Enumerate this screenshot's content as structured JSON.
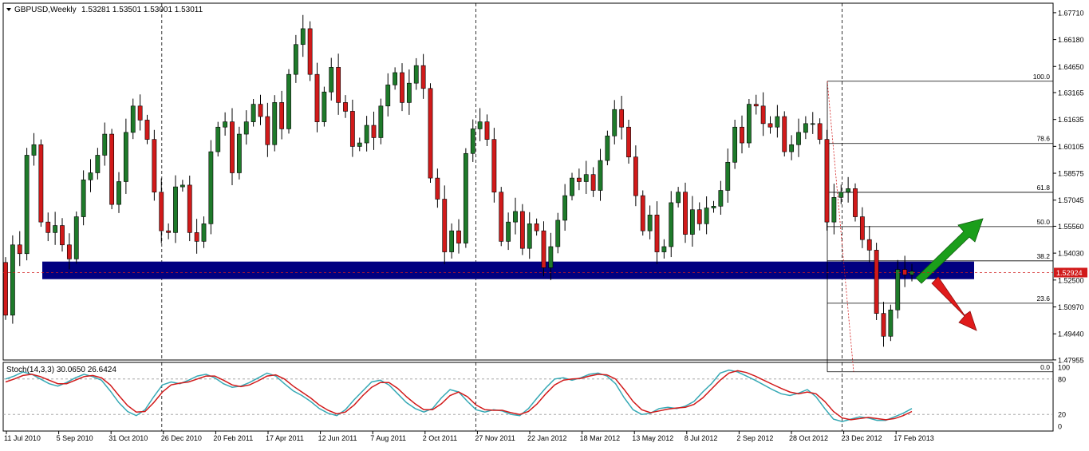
{
  "header": {
    "symbol": "GBPUSD,Weekly",
    "ohlc": "1.53281 1.53501 1.53001 1.53011"
  },
  "chart_data": {
    "type": "candlestick",
    "symbol": "GBPUSD",
    "timeframe": "Weekly",
    "ylim": [
      1.4795,
      1.6825
    ],
    "price_ticks": [
      "1.67710",
      "1.66180",
      "1.64650",
      "1.63165",
      "1.61635",
      "1.60105",
      "1.58575",
      "1.57045",
      "1.55560",
      "1.54030",
      "1.52500",
      "1.50970",
      "1.49440",
      "1.47955"
    ],
    "current_price": "1.52924",
    "x_labels": [
      "11 Jul 2010",
      "5 Sep 2010",
      "31 Oct 2010",
      "26 Dec 2010",
      "20 Feb 2011",
      "17 Apr 2011",
      "12 Jun 2011",
      "7 Aug 2011",
      "2 Oct 2011",
      "27 Nov 2011",
      "22 Jan 2012",
      "18 Mar 2012",
      "13 May 2012",
      "8 Jul 2012",
      "2 Sep 2012",
      "28 Oct 2012",
      "23 Dec 2012",
      "17 Feb 2013"
    ],
    "period_separators": [
      "26 Dec 2010",
      "27 Nov 2011",
      "23 Dec 2012"
    ],
    "candles_close": [
      1.505,
      1.545,
      1.54,
      1.596,
      1.602,
      1.558,
      1.552,
      1.556,
      1.545,
      1.537,
      1.561,
      1.582,
      1.586,
      1.596,
      1.608,
      1.568,
      1.581,
      1.609,
      1.624,
      1.616,
      1.605,
      1.575,
      1.553,
      1.552,
      1.578,
      1.579,
      1.552,
      1.547,
      1.557,
      1.598,
      1.612,
      1.615,
      1.586,
      1.608,
      1.615,
      1.625,
      1.618,
      1.602,
      1.626,
      1.611,
      1.642,
      1.659,
      1.668,
      1.642,
      1.615,
      1.632,
      1.646,
      1.626,
      1.621,
      1.601,
      1.603,
      1.613,
      1.606,
      1.624,
      1.636,
      1.643,
      1.626,
      1.637,
      1.647,
      1.634,
      1.583,
      1.571,
      1.541,
      1.553,
      1.546,
      1.597,
      1.611,
      1.615,
      1.605,
      1.575,
      1.547,
      1.558,
      1.564,
      1.543,
      1.557,
      1.553,
      1.532,
      1.544,
      1.559,
      1.573,
      1.583,
      1.581,
      1.585,
      1.576,
      1.593,
      1.607,
      1.622,
      1.612,
      1.595,
      1.573,
      1.553,
      1.562,
      1.541,
      1.544,
      1.569,
      1.575,
      1.551,
      1.565,
      1.557,
      1.566,
      1.567,
      1.576,
      1.592,
      1.612,
      1.603,
      1.625,
      1.624,
      1.614,
      1.612,
      1.618,
      1.598,
      1.602,
      1.609,
      1.614,
      1.614,
      1.605,
      1.558,
      1.572,
      1.575,
      1.577,
      1.561,
      1.548,
      1.542,
      1.506,
      1.493,
      1.508,
      1.531,
      1.528,
      1.53
    ],
    "fibonacci_levels": [
      {
        "label": "100.0",
        "price": 1.6381
      },
      {
        "label": "78.6",
        "price": 1.6027
      },
      {
        "label": "61.8",
        "price": 1.5749
      },
      {
        "label": "50.0",
        "price": 1.5554
      },
      {
        "label": "38.2",
        "price": 1.5359
      },
      {
        "label": "23.6",
        "price": 1.5118
      },
      {
        "label": "0.0",
        "price": 1.4728
      }
    ],
    "support_zone": [
      1.5255,
      1.5355
    ],
    "arrows": [
      {
        "direction": "up",
        "color": "#1b9e1b"
      },
      {
        "direction": "down",
        "color": "#e01b1b"
      }
    ],
    "colors": {
      "bull": "#1e7a2a",
      "bear": "#d11a1a",
      "zone": "#010080",
      "stoch_main": "#36a9b5",
      "stoch_signal": "#d11a1a"
    },
    "stochastic": {
      "label": "Stoch(14,3,3) 30.0650 26.6424",
      "levels": [
        "100",
        "80",
        "20",
        "0"
      ],
      "main": [
        80,
        85,
        92,
        88,
        80,
        72,
        68,
        74,
        82,
        88,
        84,
        78,
        60,
        40,
        25,
        18,
        28,
        50,
        70,
        75,
        72,
        78,
        85,
        88,
        82,
        72,
        66,
        68,
        74,
        82,
        90,
        85,
        72,
        60,
        52,
        42,
        30,
        22,
        18,
        28,
        45,
        60,
        75,
        78,
        70,
        55,
        40,
        30,
        24,
        30,
        48,
        62,
        58,
        42,
        28,
        24,
        28,
        26,
        20,
        18,
        30,
        48,
        65,
        80,
        82,
        78,
        82,
        88,
        90,
        85,
        72,
        48,
        28,
        20,
        22,
        30,
        32,
        30,
        34,
        42,
        58,
        72,
        90,
        95,
        92,
        85,
        78,
        70,
        62,
        55,
        52,
        56,
        62,
        50,
        30,
        12,
        8,
        12,
        16,
        14,
        10,
        10,
        16,
        22,
        30
      ],
      "signal": [
        75,
        80,
        86,
        88,
        84,
        78,
        72,
        72,
        78,
        84,
        86,
        82,
        70,
        52,
        35,
        24,
        25,
        40,
        58,
        70,
        73,
        75,
        80,
        85,
        85,
        78,
        70,
        67,
        70,
        77,
        85,
        87,
        80,
        68,
        58,
        48,
        36,
        27,
        21,
        24,
        36,
        52,
        66,
        74,
        74,
        64,
        50,
        38,
        28,
        28,
        38,
        52,
        58,
        50,
        36,
        28,
        27,
        27,
        23,
        20,
        25,
        38,
        55,
        70,
        78,
        80,
        81,
        85,
        88,
        87,
        80,
        62,
        42,
        28,
        23,
        26,
        29,
        31,
        32,
        37,
        48,
        63,
        78,
        90,
        94,
        91,
        85,
        78,
        71,
        64,
        58,
        55,
        58,
        55,
        42,
        25,
        14,
        11,
        13,
        15,
        13,
        11,
        13,
        18,
        25
      ]
    }
  }
}
